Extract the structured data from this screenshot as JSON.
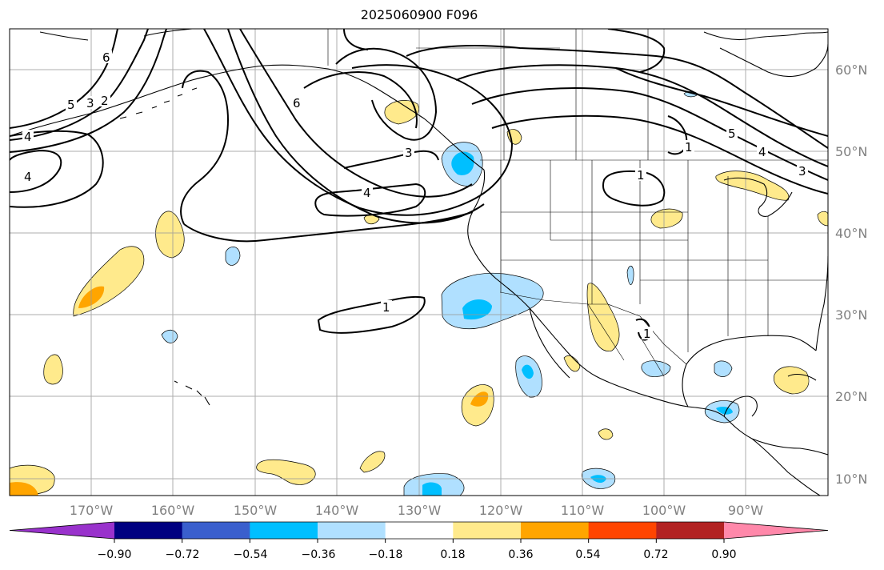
{
  "title": "2025060900 F096",
  "lat_labels": [
    "60°N",
    "50°N",
    "40°N",
    "30°N",
    "20°N",
    "10°N"
  ],
  "lon_labels": [
    "170°W",
    "160°W",
    "150°W",
    "140°W",
    "130°W",
    "120°W",
    "110°W",
    "100°W",
    "90°W"
  ],
  "contour_labels": [
    "6",
    "5",
    "3",
    "2",
    "4",
    "4",
    "6",
    "3",
    "4",
    "1",
    "1",
    "1",
    "5",
    "4",
    "3",
    "1"
  ],
  "colorbar": {
    "colors": [
      "#9932cc",
      "#000080",
      "#3a5fcd",
      "#00bfff",
      "#b0e0ff",
      "#ffffff",
      "#ffea8c",
      "#ffa500",
      "#ff4500",
      "#b22222",
      "#ff88aa"
    ],
    "tick_labels": [
      "−0.90",
      "−0.72",
      "−0.54",
      "−0.36",
      "−0.18",
      "0.18",
      "0.36",
      "0.54",
      "0.72",
      "0.90"
    ]
  },
  "map": {
    "lat_range": [
      "8°N",
      "65°N"
    ],
    "lon_range": [
      "180°W",
      "80°W"
    ],
    "gridlines": true,
    "layers": [
      "filled anomaly shading",
      "black contour lines",
      "coastlines",
      "country and state borders"
    ]
  }
}
